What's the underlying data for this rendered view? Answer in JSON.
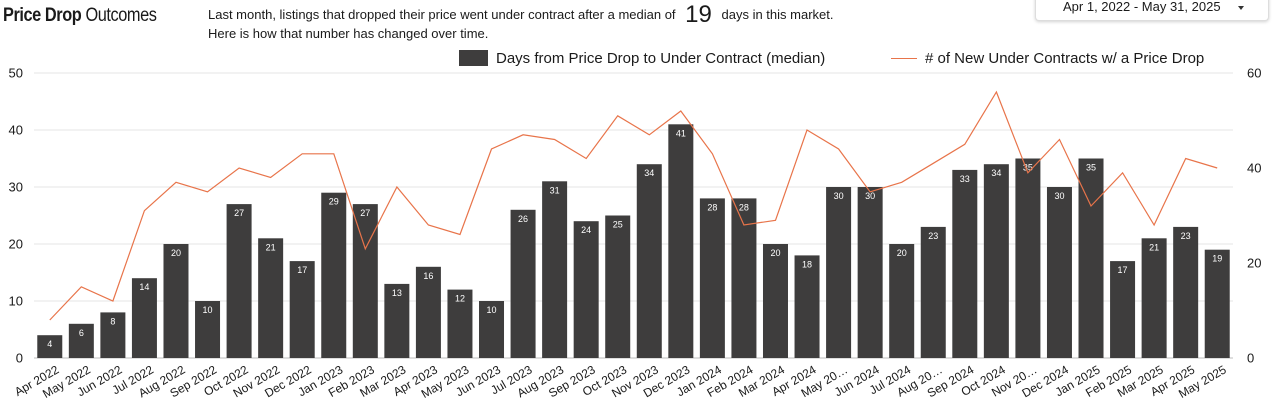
{
  "header": {
    "title_bold": "Price Drop",
    "title_rest": "Outcomes",
    "desc_before": "Last month,  listings that dropped their price went under contract after a median of",
    "desc_number": "19",
    "desc_after": "days in this market.",
    "desc_line2": "Here is how that number has changed over time."
  },
  "date_range": {
    "value": "Apr 1, 2022 - May 31, 2025"
  },
  "colors": {
    "bar": "#3e3d3d",
    "line": "#e8744a",
    "grid": "#e6e6e6"
  },
  "chart_data": {
    "type": "bar",
    "categories": [
      "Apr 2022",
      "May 2022",
      "Jun 2022",
      "Jul 2022",
      "Aug 2022",
      "Sep 2022",
      "Oct 2022",
      "Nov 2022",
      "Dec 2022",
      "Jan 2023",
      "Feb 2023",
      "Mar 2023",
      "Apr 2023",
      "May 2023",
      "Jun 2023",
      "Jul 2023",
      "Aug 2023",
      "Sep 2023",
      "Oct 2023",
      "Nov 2023",
      "Dec 2023",
      "Jan 2024",
      "Feb 2024",
      "Mar 2024",
      "Apr 2024",
      "May 20…",
      "Jun 2024",
      "Jul 2024",
      "Aug 20…",
      "Sep 2024",
      "Oct 2024",
      "Nov 20…",
      "Dec 2024",
      "Jan 2025",
      "Feb 2025",
      "Mar 2025",
      "Apr 2025",
      "May 2025"
    ],
    "series": [
      {
        "name": "Days from Price Drop to Under Contract (median)",
        "type": "bar",
        "axis": "left",
        "values": [
          4,
          6,
          8,
          14,
          20,
          10,
          27,
          21,
          17,
          29,
          27,
          13,
          16,
          12,
          10,
          26,
          31,
          24,
          25,
          34,
          41,
          28,
          28,
          20,
          18,
          30,
          30,
          20,
          23,
          33,
          34,
          35,
          30,
          35,
          17,
          21,
          23,
          19
        ]
      },
      {
        "name": "# of New Under Contracts w/ a Price Drop",
        "type": "line",
        "axis": "right",
        "values": [
          8,
          15,
          12,
          31,
          37,
          35,
          40,
          38,
          43,
          43,
          23,
          36,
          28,
          26,
          44,
          47,
          46,
          42,
          51,
          47,
          52,
          43,
          28,
          29,
          48,
          44,
          35,
          37,
          41,
          45,
          56,
          39,
          46,
          32,
          39,
          28,
          42,
          40
        ]
      }
    ],
    "y_left": {
      "ticks": [
        "0",
        "10",
        "20",
        "30",
        "40",
        "50"
      ],
      "range": [
        0,
        50
      ]
    },
    "y_right": {
      "ticks": [
        "0",
        "20",
        "40",
        "60"
      ],
      "range": [
        0,
        60
      ]
    },
    "grid": true,
    "legend_position": "top-right"
  }
}
